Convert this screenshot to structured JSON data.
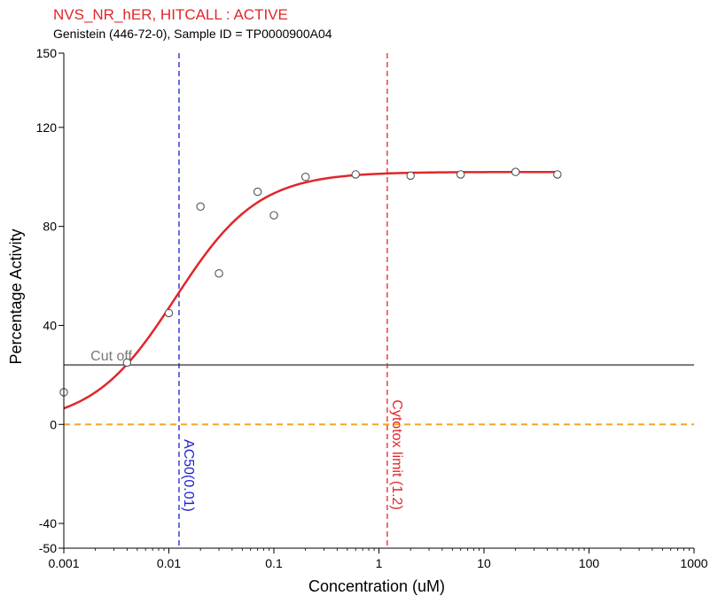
{
  "chart_data": {
    "type": "scatter",
    "title": "NVS_NR_hER, HITCALL : ACTIVE",
    "subtitle": "Genistein (446-72-0), Sample ID = TP0000900A04",
    "xlabel": "Concentration (uM)",
    "ylabel": "Percentage Activity",
    "x_scale": "log",
    "xlim": [
      0.001,
      1000
    ],
    "ylim": [
      -50,
      150
    ],
    "x_ticks": [
      {
        "value": 0.001,
        "label": "0.001"
      },
      {
        "value": 0.01,
        "label": "0.01"
      },
      {
        "value": 0.1,
        "label": "0.1"
      },
      {
        "value": 1,
        "label": "1"
      },
      {
        "value": 10,
        "label": "10"
      },
      {
        "value": 100,
        "label": "100"
      },
      {
        "value": 1000,
        "label": "1000"
      }
    ],
    "y_ticks": [
      {
        "value": 150,
        "label": "150"
      },
      {
        "value": 120,
        "label": "120"
      },
      {
        "value": 80,
        "label": "80"
      },
      {
        "value": 40,
        "label": "40"
      },
      {
        "value": 0,
        "label": "0"
      },
      {
        "value": -40,
        "label": "-40"
      },
      {
        "value": -50,
        "label": "-50"
      }
    ],
    "points": [
      {
        "x": 0.001,
        "y": 13
      },
      {
        "x": 0.004,
        "y": 25
      },
      {
        "x": 0.01,
        "y": 45
      },
      {
        "x": 0.02,
        "y": 88
      },
      {
        "x": 0.03,
        "y": 61
      },
      {
        "x": 0.07,
        "y": 94
      },
      {
        "x": 0.1,
        "y": 84.5
      },
      {
        "x": 0.2,
        "y": 100
      },
      {
        "x": 0.6,
        "y": 101
      },
      {
        "x": 2,
        "y": 100.5
      },
      {
        "x": 6,
        "y": 101
      },
      {
        "x": 20,
        "y": 102
      },
      {
        "x": 50,
        "y": 101
      }
    ],
    "fit_curve": {
      "top": 102,
      "bottom": 0,
      "ac50": 0.0115,
      "hill": 1.1,
      "x_min": 0.001,
      "x_max": 50
    },
    "cutoff": {
      "label": "Cut off",
      "y": 24,
      "color": "#777777"
    },
    "zero_line": {
      "y": 0,
      "color": "#f5a623"
    },
    "ac50_line": {
      "label": "AC50(0.01)",
      "x": 0.0125,
      "color": "#1f1fd0"
    },
    "cytotox_line": {
      "label": "Cytotox limit (1.2)",
      "x": 1.2,
      "color": "#e0262a"
    },
    "colors": {
      "title": "#e0262a",
      "curve": "#e0262a",
      "points": "#555555",
      "axis": "#000000"
    },
    "grid": false
  }
}
